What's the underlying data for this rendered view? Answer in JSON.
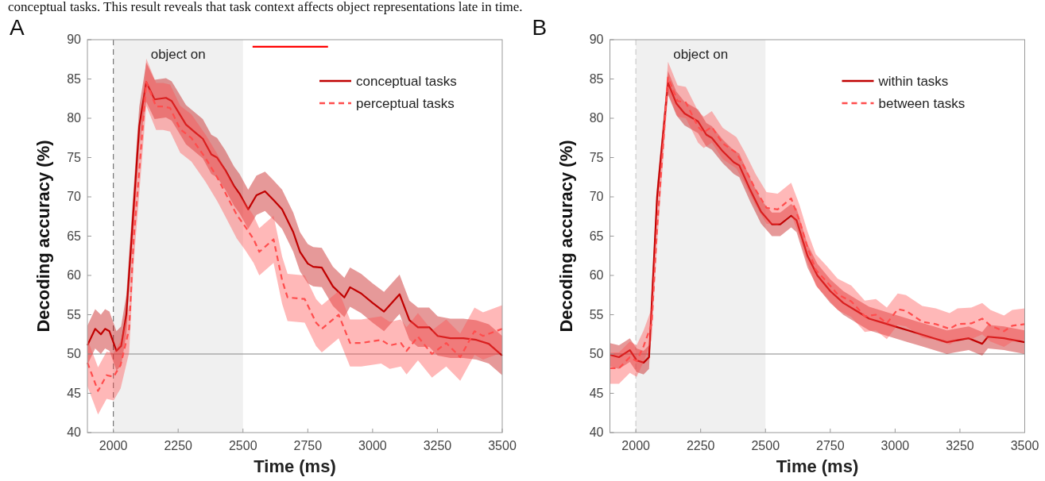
{
  "chart_data": [
    {
      "type": "line",
      "title": "A",
      "xlabel": "Time (ms)",
      "ylabel": "Decoding accuracy (%)",
      "annotations": [
        "conceptual tasks. This result reveals that task context affects object representations late in time."
      ],
      "xlim": [
        1900,
        3500
      ],
      "ylim": [
        40,
        90
      ],
      "xticks": [
        2000,
        2250,
        2500,
        2750,
        3000,
        3250,
        3500
      ],
      "yticks": [
        40,
        45,
        50,
        55,
        60,
        65,
        70,
        75,
        80,
        85,
        90
      ],
      "legend": "top right",
      "bands": [
        {
          "axis": "x",
          "from": 2000,
          "to": 2500,
          "label": "object on",
          "color": "#f0f0f0"
        }
      ],
      "ref_lines": [
        {
          "axis": "x",
          "value": 2000,
          "color": "#777777",
          "line_style": "dashed"
        },
        {
          "axis": "y",
          "value": 50,
          "color": "#888888",
          "line_style": "solid"
        }
      ],
      "series": [
        {
          "name": "conceptual tasks",
          "color": "#c00000",
          "line_style": "solid",
          "x": [
            1900,
            1930,
            1952,
            1968,
            1985,
            2012,
            2030,
            2050,
            2075,
            2100,
            2127,
            2159,
            2203,
            2225,
            2247,
            2280,
            2312,
            2345,
            2378,
            2400,
            2432,
            2465,
            2487,
            2520,
            2552,
            2585,
            2618,
            2651,
            2694,
            2720,
            2750,
            2771,
            2804,
            2847,
            2891,
            2913,
            2956,
            3000,
            3044,
            3104,
            3142,
            3175,
            3218,
            3251,
            3300,
            3350,
            3400,
            3448,
            3500
          ],
          "values": [
            51.1,
            53.2,
            52.5,
            53.2,
            52.9,
            50.4,
            51,
            55,
            67,
            79,
            84.6,
            82.4,
            82.6,
            82.2,
            81,
            79.2,
            78.3,
            77.4,
            75.4,
            75,
            73.4,
            71.4,
            70.4,
            68.4,
            70.2,
            70.7,
            69.6,
            68.4,
            65.5,
            63,
            61.5,
            61.1,
            61,
            58.6,
            57.2,
            58.5,
            57.7,
            56.5,
            55.4,
            57.6,
            54.3,
            53.4,
            53.4,
            52.3,
            52,
            52,
            51.8,
            51.3,
            49.8
          ],
          "lower": [
            48.6,
            50.7,
            50,
            50.7,
            50.4,
            47.9,
            48.5,
            52.5,
            64.5,
            76.5,
            82.1,
            79.9,
            80.1,
            79.7,
            78.5,
            76.7,
            75.8,
            74.9,
            72.9,
            72.5,
            70.9,
            68.9,
            67.9,
            65.9,
            67.7,
            68.2,
            67.1,
            65.9,
            63,
            60.5,
            59,
            58.6,
            58.5,
            56.1,
            54.7,
            56,
            55.2,
            54,
            52.9,
            55.1,
            51.8,
            50.9,
            50.9,
            49.8,
            49.5,
            49.5,
            49.3,
            48.8,
            47.3
          ],
          "upper": [
            53.6,
            55.7,
            55,
            55.7,
            55.4,
            52.9,
            53.5,
            57.5,
            69.5,
            81.5,
            87.1,
            84.9,
            85.1,
            84.7,
            83.5,
            81.7,
            80.8,
            79.9,
            77.9,
            77.5,
            75.9,
            73.9,
            72.9,
            70.9,
            72.7,
            73.2,
            72.1,
            70.9,
            68,
            65.5,
            64,
            63.6,
            63.5,
            61.1,
            59.7,
            61,
            60.2,
            59,
            57.9,
            60.1,
            56.8,
            55.9,
            55.9,
            54.8,
            54.5,
            54.5,
            54.3,
            53.8,
            52.3
          ]
        },
        {
          "name": "perceptual tasks",
          "color": "#ff4d4d",
          "line_style": "dashed",
          "x": [
            1900,
            1941,
            1974,
            2001,
            2028,
            2061,
            2078,
            2094,
            2127,
            2165,
            2192,
            2219,
            2258,
            2301,
            2356,
            2400,
            2432,
            2476,
            2509,
            2541,
            2563,
            2618,
            2651,
            2672,
            2738,
            2782,
            2804,
            2869,
            2913,
            2956,
            3033,
            3066,
            3109,
            3131,
            3175,
            3229,
            3284,
            3338,
            3393,
            3426,
            3500
          ],
          "values": [
            48.9,
            45.3,
            47.3,
            47.1,
            48.6,
            53.2,
            64.4,
            70.9,
            84.6,
            81.5,
            81.5,
            81.3,
            78.6,
            77.5,
            74.9,
            72.5,
            70.5,
            67.7,
            66.2,
            64.6,
            63,
            64.6,
            59.4,
            57.2,
            57,
            54,
            53.2,
            55,
            51.4,
            51.4,
            51.8,
            51.1,
            51.4,
            50.4,
            52.2,
            50,
            51.4,
            49.6,
            52.9,
            52.3,
            53.2
          ],
          "lower": [
            45.9,
            42.3,
            44.3,
            44.1,
            45.6,
            50.2,
            61.4,
            67.9,
            81.6,
            78.5,
            78.5,
            78.3,
            75.6,
            74.5,
            71.9,
            69.5,
            67.5,
            64.7,
            63.2,
            61.6,
            60,
            61.6,
            56.4,
            54.2,
            54,
            51,
            50.2,
            52,
            48.4,
            48.4,
            48.8,
            48.1,
            48.4,
            47.4,
            49.2,
            47,
            48.4,
            46.6,
            49.9,
            49.3,
            50.2
          ],
          "upper": [
            51.9,
            48.3,
            50.3,
            50.1,
            51.6,
            56.2,
            67.4,
            73.9,
            87.6,
            84.5,
            84.5,
            84.3,
            81.6,
            80.5,
            77.9,
            75.5,
            73.5,
            70.7,
            69.2,
            67.6,
            66,
            67.6,
            62.4,
            60.2,
            60,
            57,
            56.2,
            58,
            54.4,
            54.4,
            54.8,
            54.1,
            54.4,
            53.4,
            55.2,
            53,
            54.4,
            52.6,
            55.9,
            55.3,
            56.2
          ]
        },
        {
          "color": "#ff0000",
          "line_style": "solid",
          "x": [
            2537,
            2828
          ],
          "values": [
            89.1,
            89.1
          ]
        }
      ]
    },
    {
      "type": "line",
      "title": "B",
      "xlabel": "Time (ms)",
      "ylabel": "Decoding accuracy (%)",
      "xlim": [
        1900,
        3500
      ],
      "ylim": [
        40,
        90
      ],
      "xticks": [
        2000,
        2250,
        2500,
        2750,
        3000,
        3250,
        3500
      ],
      "yticks": [
        40,
        45,
        50,
        55,
        60,
        65,
        70,
        75,
        80,
        85,
        90
      ],
      "legend": "top right",
      "bands": [
        {
          "axis": "x",
          "from": 2000,
          "to": 2500,
          "label": "object on",
          "color": "#f0f0f0"
        }
      ],
      "ref_lines": [
        {
          "axis": "x",
          "value": 2000,
          "color": "#cccccc",
          "line_style": "dashed"
        },
        {
          "axis": "y",
          "value": 50,
          "color": "#888888",
          "line_style": "solid"
        }
      ],
      "series": [
        {
          "name": "within tasks",
          "color": "#c00000",
          "line_style": "solid",
          "x": [
            1900,
            1935,
            1977,
            2003,
            2030,
            2051,
            2082,
            2124,
            2156,
            2188,
            2240,
            2272,
            2293,
            2335,
            2378,
            2399,
            2441,
            2483,
            2525,
            2557,
            2599,
            2620,
            2662,
            2700,
            2750,
            2800,
            2850,
            2900,
            2950,
            3000,
            3050,
            3100,
            3150,
            3200,
            3231,
            3284,
            3336,
            3358,
            3420,
            3500
          ],
          "values": [
            49.9,
            49.6,
            50.5,
            49.2,
            48.9,
            49.6,
            70,
            84.5,
            81.9,
            80.6,
            79.6,
            77.9,
            77.5,
            75.8,
            74.4,
            74,
            70.9,
            68.1,
            66.5,
            66.5,
            67.6,
            67,
            62.5,
            60,
            58,
            56.5,
            55.5,
            54.5,
            54,
            53.5,
            53,
            52.5,
            52,
            51.5,
            51.7,
            52,
            51.3,
            52.2,
            52,
            51.5
          ],
          "lower": [
            48.4,
            48.1,
            49,
            47.7,
            47.4,
            48.1,
            68.5,
            83,
            80.4,
            79.1,
            78.1,
            76.4,
            76,
            74.3,
            72.9,
            72.5,
            69.4,
            66.6,
            65,
            65,
            66.1,
            65.5,
            61,
            58.5,
            56.5,
            55,
            54,
            53,
            52.5,
            52,
            51.5,
            51,
            50.5,
            50,
            50.2,
            50.5,
            49.8,
            50.7,
            50.5,
            50
          ],
          "upper": [
            51.4,
            51.1,
            52,
            50.7,
            50.4,
            51.1,
            71.5,
            86,
            83.4,
            82.1,
            81.1,
            79.4,
            79,
            77.3,
            75.9,
            75.5,
            72.4,
            69.6,
            68,
            68,
            69.1,
            68.5,
            64,
            61.5,
            59.5,
            58,
            57,
            56,
            55.5,
            55,
            54.5,
            54,
            53.5,
            53,
            53.2,
            53.5,
            52.8,
            53.7,
            53.5,
            53
          ]
        },
        {
          "name": "between tasks",
          "color": "#ff4d4d",
          "line_style": "dashed",
          "x": [
            1900,
            1935,
            1977,
            2003,
            2030,
            2061,
            2082,
            2124,
            2161,
            2193,
            2240,
            2262,
            2293,
            2335,
            2388,
            2420,
            2462,
            2504,
            2547,
            2599,
            2631,
            2662,
            2694,
            2736,
            2778,
            2831,
            2883,
            2926,
            2968,
            3010,
            3042,
            3105,
            3157,
            3210,
            3241,
            3294,
            3336,
            3368,
            3420,
            3452,
            3500
          ],
          "values": [
            48.2,
            48.2,
            49.6,
            49.1,
            51,
            53.8,
            66,
            85.2,
            82.2,
            82,
            78.9,
            78.2,
            78.9,
            76.8,
            75.6,
            73.7,
            70.9,
            68.6,
            68.4,
            69.8,
            67,
            63.6,
            60.7,
            59.2,
            57.6,
            56.7,
            54.8,
            55,
            53.9,
            55.7,
            55.5,
            54.1,
            53.8,
            53.2,
            53.8,
            53.9,
            54.5,
            53.6,
            52.9,
            53.6,
            53.8
          ],
          "lower": [
            46.2,
            46.2,
            47.6,
            47.1,
            49,
            51.8,
            64,
            83.2,
            80.2,
            80,
            76.9,
            76.2,
            76.9,
            74.8,
            73.6,
            71.7,
            68.9,
            66.6,
            66.4,
            67.8,
            65,
            61.6,
            58.7,
            57.2,
            55.6,
            54.7,
            52.8,
            53,
            51.9,
            53.7,
            53.5,
            52.1,
            51.8,
            51.2,
            51.8,
            51.9,
            52.5,
            51.6,
            50.9,
            51.6,
            51.8
          ],
          "upper": [
            50.2,
            50.2,
            51.6,
            51.1,
            53,
            55.8,
            68,
            87.2,
            84.2,
            84,
            80.9,
            80.2,
            80.9,
            78.8,
            77.6,
            75.7,
            72.9,
            70.6,
            70.4,
            71.8,
            69,
            65.6,
            62.7,
            61.2,
            59.6,
            58.7,
            56.8,
            57,
            55.9,
            57.7,
            57.5,
            56.1,
            55.8,
            55.2,
            55.8,
            55.9,
            56.5,
            55.6,
            54.9,
            55.6,
            55.8
          ]
        }
      ]
    }
  ]
}
